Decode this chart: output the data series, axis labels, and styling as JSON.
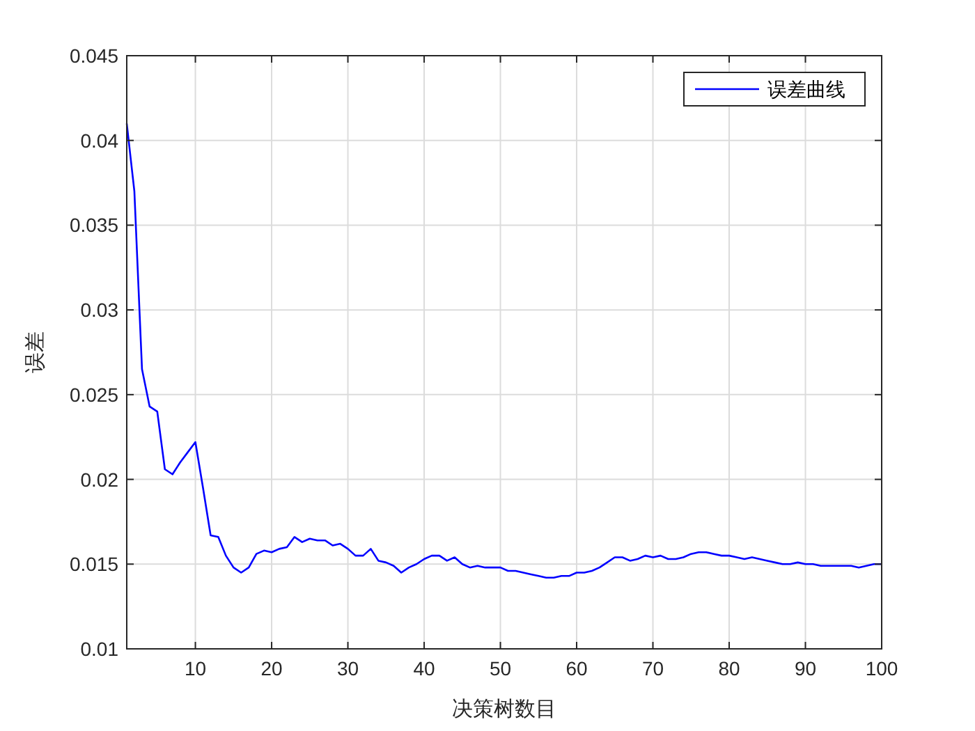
{
  "chart_data": {
    "type": "line",
    "xlabel": "决策树数目",
    "ylabel": "误差",
    "xlim": [
      1,
      100
    ],
    "xticks": [
      10,
      20,
      30,
      40,
      50,
      60,
      70,
      80,
      90,
      100
    ],
    "ylim": [
      0.01,
      0.045
    ],
    "yticks": [
      0.01,
      0.015,
      0.02,
      0.025,
      0.03,
      0.035,
      0.04,
      0.045
    ],
    "grid": true,
    "legend": "top right",
    "line_style": "solid",
    "x": [
      1,
      2,
      3,
      4,
      5,
      6,
      7,
      8,
      9,
      10,
      11,
      12,
      13,
      14,
      15,
      16,
      17,
      18,
      19,
      20,
      21,
      22,
      23,
      24,
      25,
      26,
      27,
      28,
      29,
      30,
      31,
      32,
      33,
      34,
      35,
      36,
      37,
      38,
      39,
      40,
      41,
      42,
      43,
      44,
      45,
      46,
      47,
      48,
      49,
      50,
      51,
      52,
      53,
      54,
      55,
      56,
      57,
      58,
      59,
      60,
      61,
      62,
      63,
      64,
      65,
      66,
      67,
      68,
      69,
      70,
      71,
      72,
      73,
      74,
      75,
      76,
      77,
      78,
      79,
      80,
      81,
      82,
      83,
      84,
      85,
      86,
      87,
      88,
      89,
      90,
      91,
      92,
      93,
      94,
      95,
      96,
      97,
      98,
      99,
      100
    ],
    "series": [
      {
        "name": "误差曲线",
        "color": "#0000ff",
        "values": [
          0.041,
          0.037,
          0.0265,
          0.0243,
          0.024,
          0.0206,
          0.0203,
          0.021,
          0.0216,
          0.0222,
          0.0195,
          0.0167,
          0.0166,
          0.0155,
          0.0148,
          0.0145,
          0.0148,
          0.0156,
          0.0158,
          0.0157,
          0.0159,
          0.016,
          0.0166,
          0.0163,
          0.0165,
          0.0164,
          0.0164,
          0.0161,
          0.0162,
          0.0159,
          0.0155,
          0.0155,
          0.0159,
          0.0152,
          0.0151,
          0.0149,
          0.0145,
          0.0148,
          0.015,
          0.0153,
          0.0155,
          0.0155,
          0.0152,
          0.0154,
          0.015,
          0.0148,
          0.0149,
          0.0148,
          0.0148,
          0.0148,
          0.0146,
          0.0146,
          0.0145,
          0.0144,
          0.0143,
          0.0142,
          0.0142,
          0.0143,
          0.0143,
          0.0145,
          0.0145,
          0.0146,
          0.0148,
          0.0151,
          0.0154,
          0.0154,
          0.0152,
          0.0153,
          0.0155,
          0.0154,
          0.0155,
          0.0153,
          0.0153,
          0.0154,
          0.0156,
          0.0157,
          0.0157,
          0.0156,
          0.0155,
          0.0155,
          0.0154,
          0.0153,
          0.0154,
          0.0153,
          0.0152,
          0.0151,
          0.015,
          0.015,
          0.0151,
          0.015,
          0.015,
          0.0149,
          0.0149,
          0.0149,
          0.0149,
          0.0149,
          0.0148,
          0.0149,
          0.015,
          0.015
        ]
      }
    ]
  }
}
